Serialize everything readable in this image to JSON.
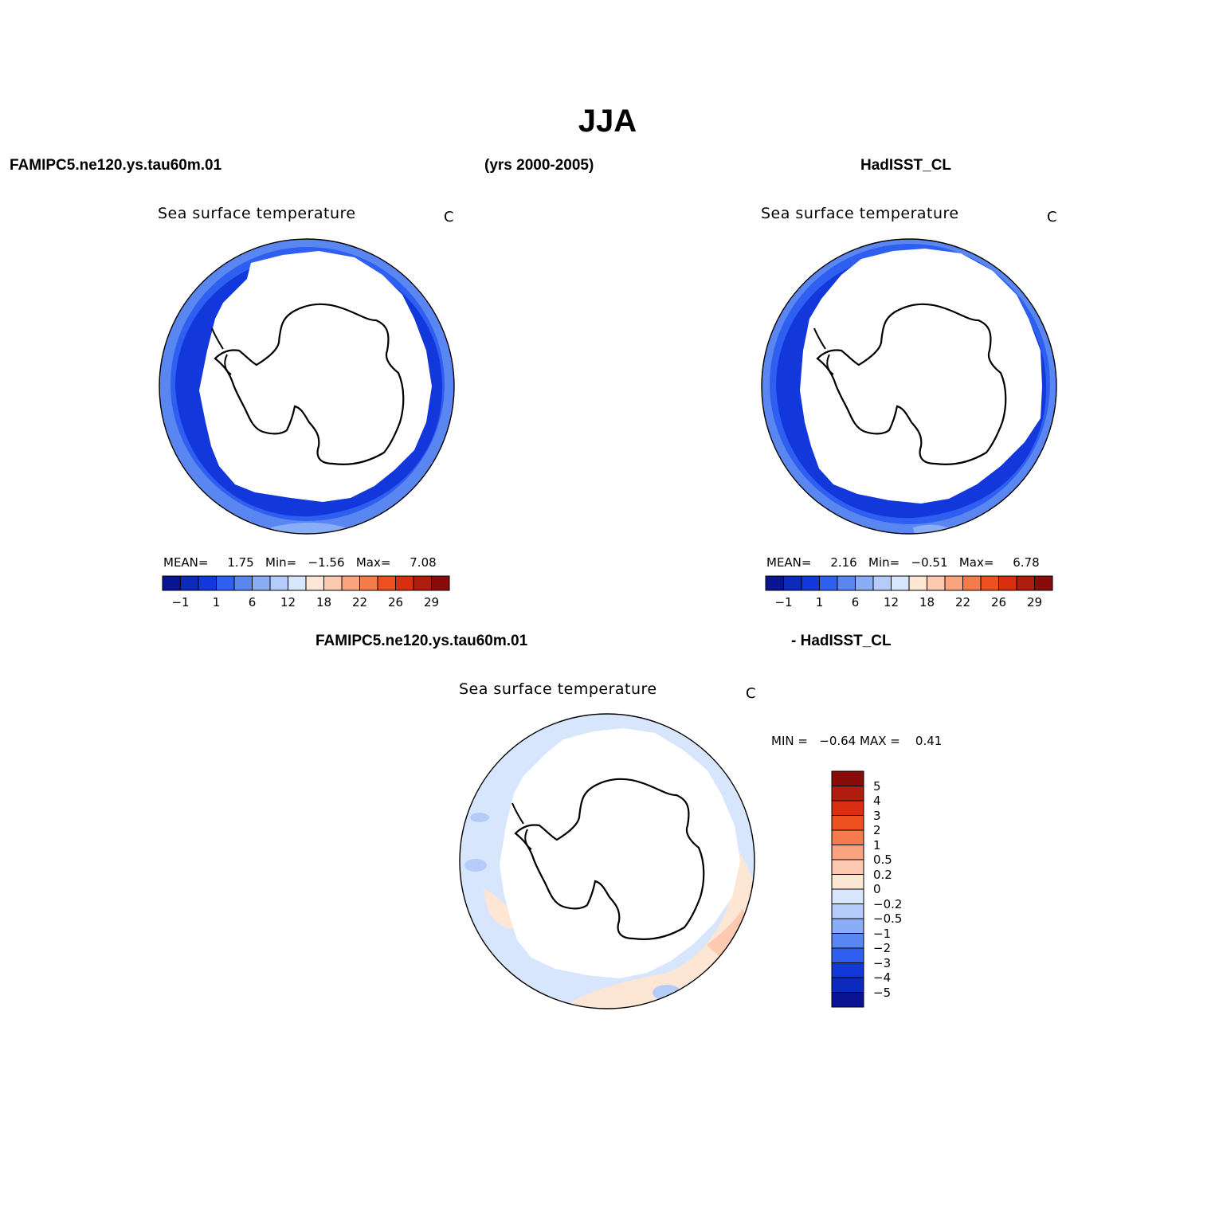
{
  "title": "JJA",
  "header": {
    "left": "FAMIPC5.ne120.ys.tau60m.01",
    "center": "(yrs 2000-2005)",
    "right": "HadISST_CL"
  },
  "panels": [
    {
      "name": "model",
      "title": "Sea surface temperature",
      "units": "C",
      "stats": {
        "mean_label": "MEAN=",
        "mean": "1.75",
        "min_label": "Min=",
        "min": "−1.56",
        "max_label": "Max=",
        "max": "7.08"
      },
      "labelbar_ticks": [
        "−1",
        "1",
        "6",
        "12",
        "18",
        "22",
        "26",
        "29"
      ]
    },
    {
      "name": "obs",
      "title": "Sea surface temperature",
      "units": "C",
      "stats": {
        "mean_label": "MEAN=",
        "mean": "2.16",
        "min_label": "Min=",
        "min": "−0.51",
        "max_label": "Max=",
        "max": "6.78"
      },
      "labelbar_ticks": [
        "−1",
        "1",
        "6",
        "12",
        "18",
        "22",
        "26",
        "29"
      ]
    }
  ],
  "diff": {
    "header_left": "FAMIPC5.ne120.ys.tau60m.01",
    "header_right": "- HadISST_CL",
    "title": "Sea surface temperature",
    "units": "C",
    "minmax": {
      "min_label": "MIN =",
      "min": "−0.64",
      "max_label": "MAX =",
      "max": "0.41"
    },
    "labelbar_ticks": [
      "5",
      "4",
      "3",
      "2",
      "1",
      "0.5",
      "0.2",
      "0",
      "−0.2",
      "−0.5",
      "−1",
      "−2",
      "−3",
      "−4",
      "−5"
    ]
  },
  "colors": {
    "abs_scale": [
      "#0a1493",
      "#0c2bbd",
      "#1238dc",
      "#2e5ff0",
      "#5a86f2",
      "#8aaef6",
      "#b5ccfa",
      "#d8e6fd",
      "#fde6d4",
      "#fccab0",
      "#f9a37f",
      "#f57a4c",
      "#ee4f1f",
      "#d82f10",
      "#b01d0e",
      "#8a0c0a"
    ],
    "diff_scale_top_to_bottom": [
      "#8a0c0a",
      "#b01d0e",
      "#d82f10",
      "#ee4f1f",
      "#f57a4c",
      "#f9a37f",
      "#fccab0",
      "#fde6d4",
      "#d8e6fd",
      "#b5ccfa",
      "#8aaef6",
      "#5a86f2",
      "#2e5ff0",
      "#1238dc",
      "#0c2bbd",
      "#0a1493"
    ],
    "ocean_dark": "#1238dc",
    "ocean_mid": "#2e5ff0",
    "ocean_light": "#5a86f2",
    "ocean_pale": "#8aaef6",
    "diff_neg": "#d8e6fd",
    "diff_neg2": "#b5ccfa",
    "diff_pos": "#fde6d4",
    "diff_pos2": "#fccab0"
  }
}
